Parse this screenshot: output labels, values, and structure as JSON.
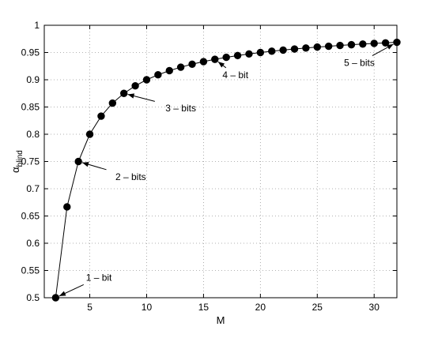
{
  "chart_data": {
    "type": "line",
    "title": "",
    "xlabel": "M",
    "ylabel": {
      "main": "α",
      "sub": "blind"
    },
    "xlim": [
      1,
      32
    ],
    "ylim": [
      0.5,
      1
    ],
    "xticks": [
      5,
      10,
      15,
      20,
      25,
      30
    ],
    "yticks": [
      0.5,
      0.55,
      0.6,
      0.65,
      0.7,
      0.75,
      0.8,
      0.85,
      0.9,
      0.95,
      1
    ],
    "ytick_labels": [
      "0.5",
      "0.55",
      "0.6",
      "0.65",
      "0.7",
      "0.75",
      "0.8",
      "0.85",
      "0.9",
      "0.95",
      "1"
    ],
    "grid": true,
    "series": [
      {
        "marker": "filled-circle",
        "color": "#000000",
        "x": [
          2,
          3,
          4,
          5,
          6,
          7,
          8,
          9,
          10,
          11,
          12,
          13,
          14,
          15,
          16,
          17,
          18,
          19,
          20,
          21,
          22,
          23,
          24,
          25,
          26,
          27,
          28,
          29,
          30,
          31,
          32
        ],
        "y": [
          0.5,
          0.6667,
          0.75,
          0.8,
          0.8333,
          0.8571,
          0.875,
          0.8889,
          0.9,
          0.9091,
          0.9167,
          0.9231,
          0.9286,
          0.9333,
          0.9375,
          0.9412,
          0.9444,
          0.9474,
          0.95,
          0.9524,
          0.9545,
          0.9565,
          0.9583,
          0.96,
          0.9615,
          0.963,
          0.9643,
          0.9655,
          0.9667,
          0.9677,
          0.9688
        ]
      }
    ],
    "annotations": [
      {
        "text": "1 – bit",
        "x": 2,
        "y": 0.5,
        "label_x": 5.8,
        "label_y": 0.537
      },
      {
        "text": "2 – bits",
        "x": 4,
        "y": 0.75,
        "label_x": 8.6,
        "label_y": 0.722
      },
      {
        "text": "3 – bits",
        "x": 8,
        "y": 0.875,
        "label_x": 13,
        "label_y": 0.848
      },
      {
        "text": "4 – bit",
        "x": 16,
        "y": 0.9375,
        "label_x": 17.8,
        "label_y": 0.909
      },
      {
        "text": "5 – bits",
        "x": 32,
        "y": 0.9688,
        "label_x": 28.7,
        "label_y": 0.931
      }
    ]
  }
}
